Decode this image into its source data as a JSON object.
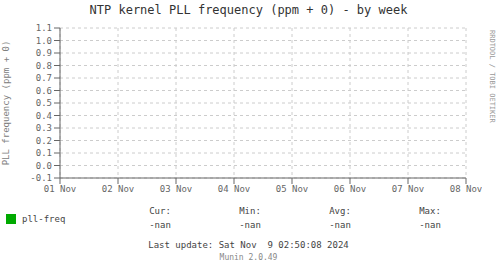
{
  "chart_data": {
    "type": "line",
    "title": "NTP kernel PLL frequency (ppm + 0) - by week",
    "y_label": "PLL frequency (ppm + 0)",
    "categories": [
      "01 Nov",
      "02 Nov",
      "03 Nov",
      "04 Nov",
      "05 Nov",
      "06 Nov",
      "07 Nov",
      "08 Nov"
    ],
    "series": [
      {
        "name": "pll-freq",
        "color": "#00aa00",
        "values": [
          null,
          null,
          null,
          null,
          null,
          null,
          null,
          null
        ],
        "stat_labels": [
          "Cur:",
          "Min:",
          "Avg:",
          "Max:"
        ],
        "stat_values": [
          "-nan",
          "-nan",
          "-nan",
          "-nan"
        ]
      }
    ],
    "ylim": [
      -0.1,
      1.1
    ],
    "yticks": [
      -0.1,
      {
        "value": 0.0,
        "label": "0.0"
      },
      0.1,
      0.2,
      0.3,
      0.4,
      0.5,
      0.6,
      0.7,
      0.8,
      0.9,
      {
        "value": 1.0,
        "label": "1.0"
      },
      1.1
    ],
    "grid": true,
    "annotations": [
      "RRDTOOL / TOBI OETIKER",
      "Last update: Sat Nov  9 02:50:08 2024",
      "Munin 2.0.49"
    ]
  }
}
